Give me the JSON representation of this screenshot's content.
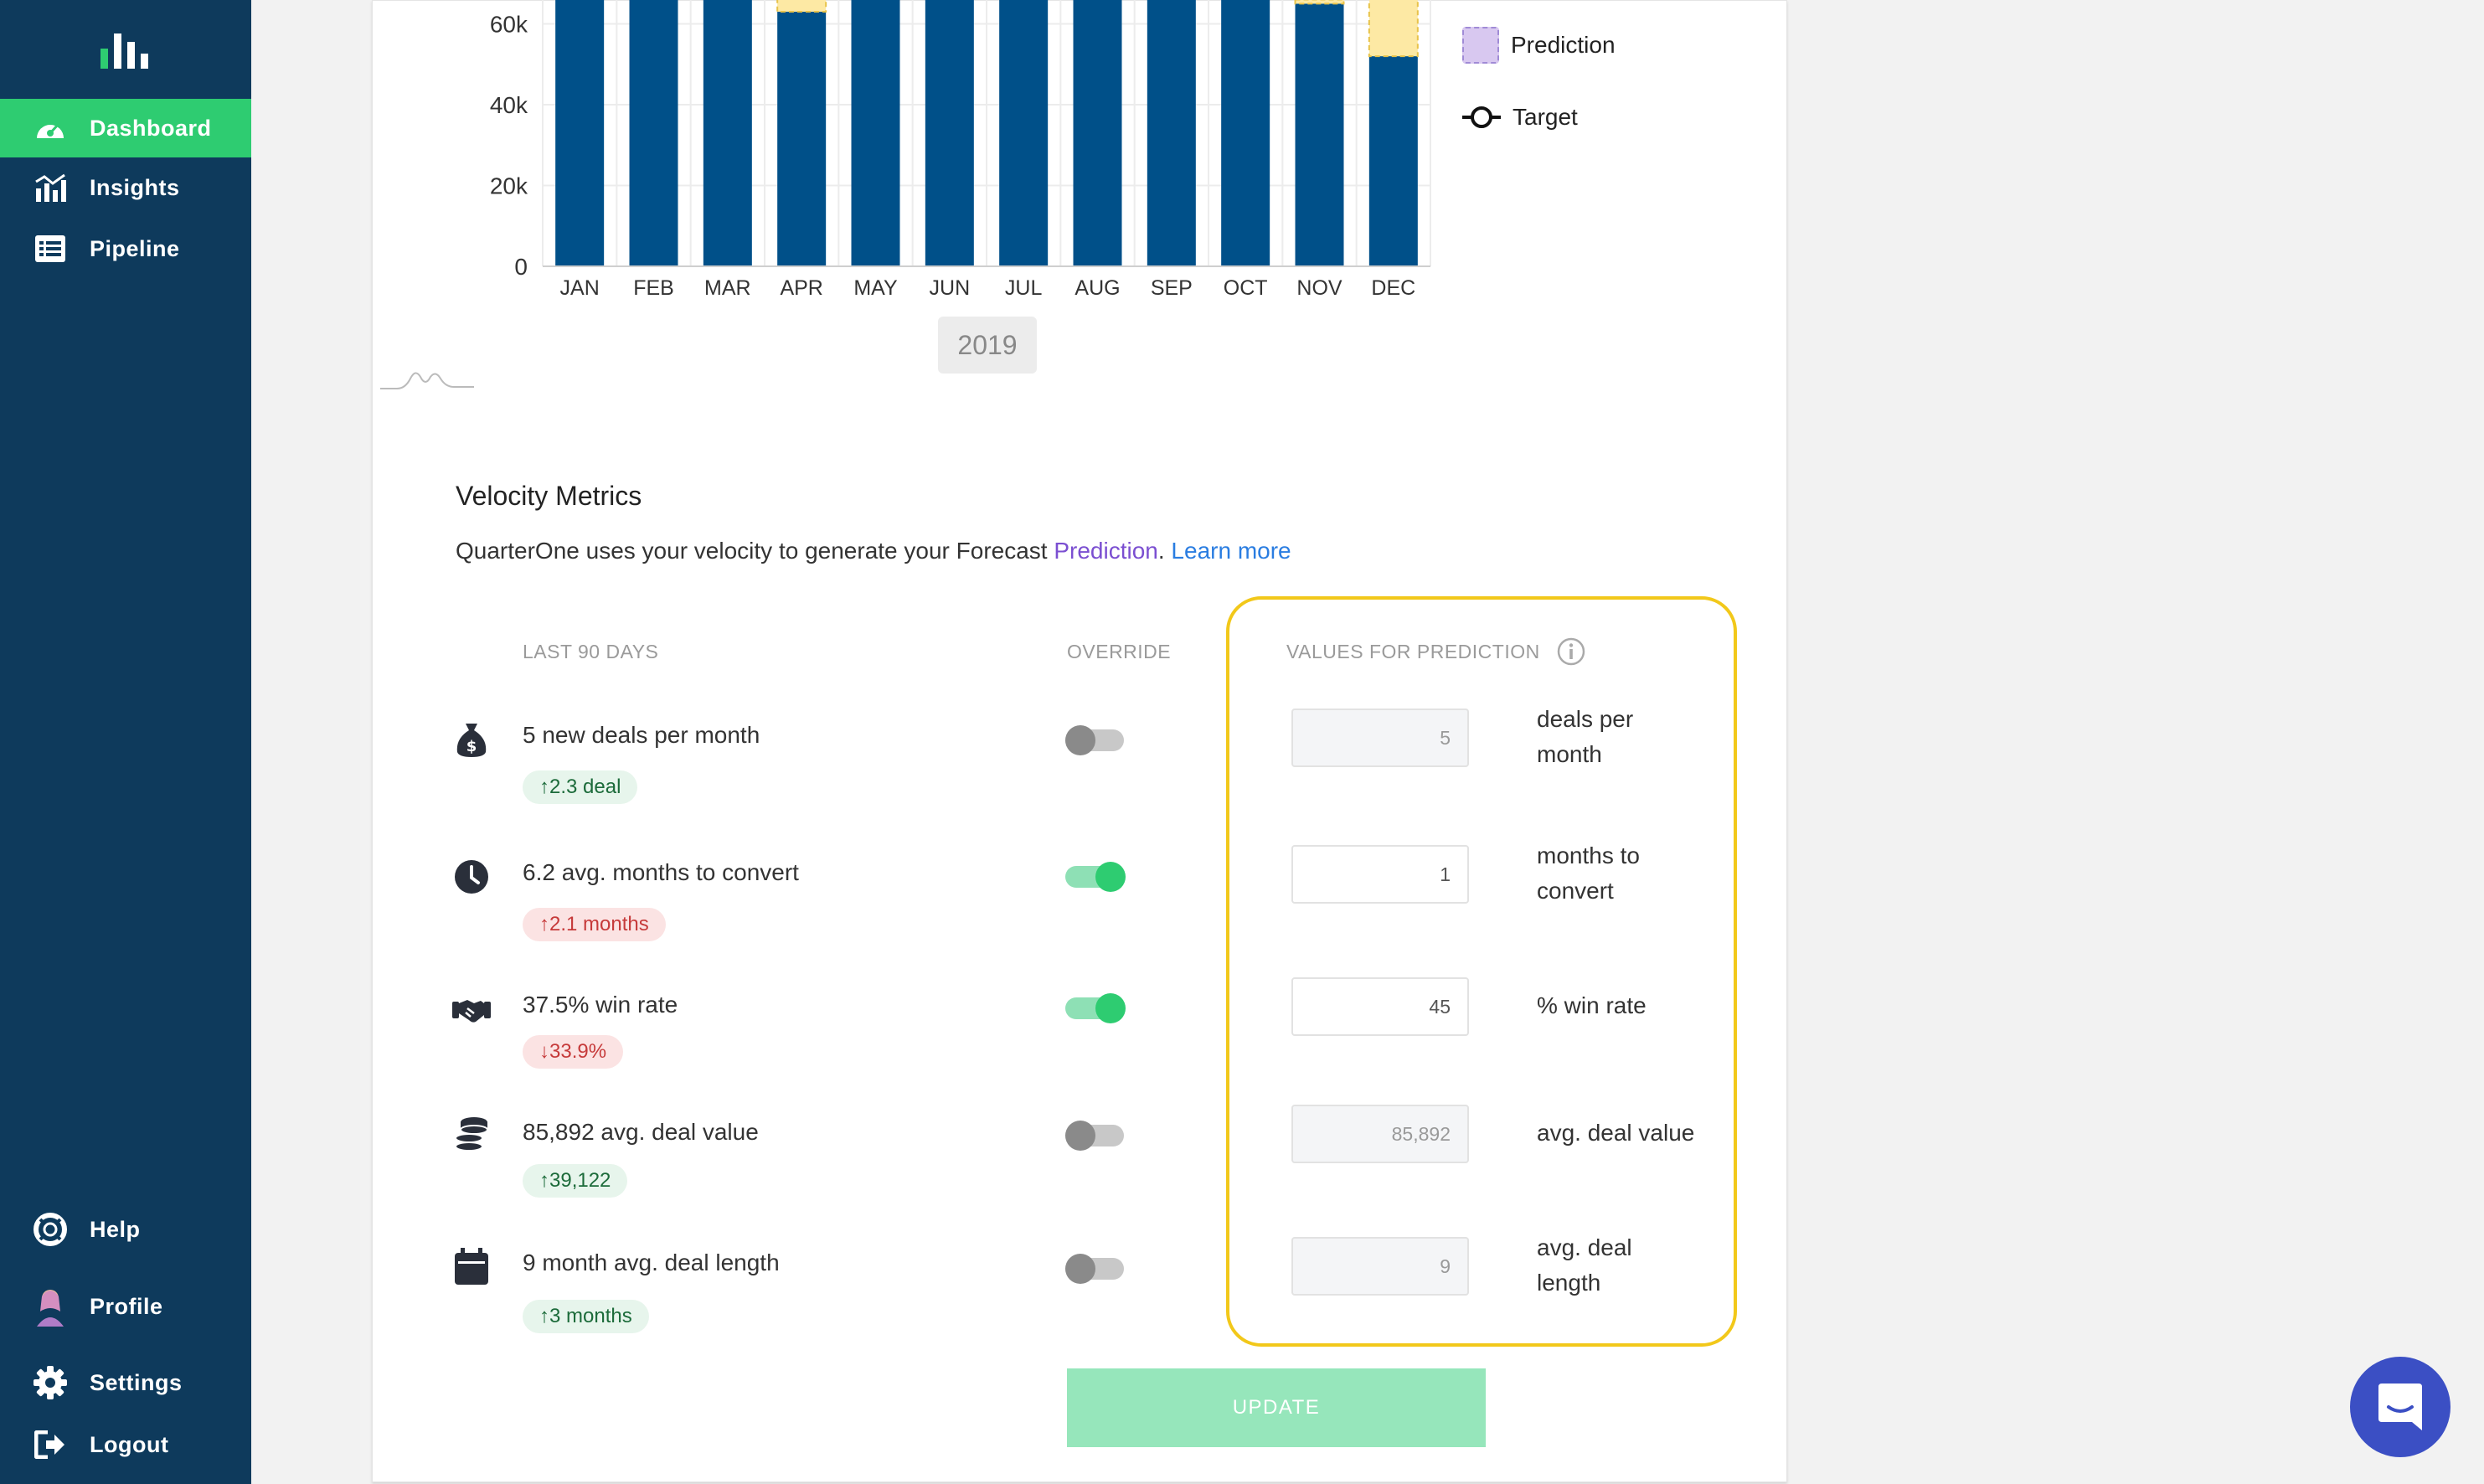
{
  "sidebar": {
    "nav": [
      {
        "label": "Dashboard",
        "icon": "dashboard-gauge-icon",
        "active": true
      },
      {
        "label": "Insights",
        "icon": "chart-insights-icon",
        "active": false
      },
      {
        "label": "Pipeline",
        "icon": "pipeline-list-icon",
        "active": false
      }
    ],
    "bottom": [
      {
        "label": "Help",
        "icon": "lifebuoy-icon"
      },
      {
        "label": "Profile",
        "icon": "avatar-icon"
      },
      {
        "label": "Settings",
        "icon": "gear-icon"
      },
      {
        "label": "Logout",
        "icon": "logout-icon"
      }
    ]
  },
  "colors": {
    "sidebar": "#0e3a5c",
    "accent": "#2ecc71",
    "bar": "#005089",
    "prediction": "#fde9a4",
    "highlight": "#f2c81a"
  },
  "chart_data": {
    "type": "bar",
    "categories": [
      "JAN",
      "FEB",
      "MAR",
      "APR",
      "MAY",
      "JUN",
      "JUL",
      "AUG",
      "SEP",
      "OCT",
      "NOV",
      "DEC"
    ],
    "series": [
      {
        "values": [
          70000,
          70000,
          70000,
          63000,
          70000,
          70000,
          70000,
          70000,
          70000,
          70000,
          65000,
          52000
        ]
      },
      {
        "name": "Prediction",
        "values": [
          0,
          0,
          0,
          7000,
          0,
          0,
          0,
          0,
          0,
          0,
          1000,
          18000
        ]
      }
    ],
    "y_ticks": [
      "0",
      "20k",
      "40k",
      "60k"
    ],
    "ylim": [
      0,
      70000
    ],
    "stacked": true,
    "year": "2019",
    "legend": [
      {
        "label": "Prediction"
      },
      {
        "label": "Target"
      }
    ],
    "legend_position": "right"
  },
  "velocity": {
    "title": "Velocity Metrics",
    "desc_prefix": "QuarterOne uses your velocity to generate your Forecast ",
    "desc_prediction": "Prediction",
    "desc_dot": ".",
    "desc_learn": "Learn more",
    "col_last90": "LAST 90 DAYS",
    "col_override": "OVERRIDE",
    "col_values": "VALUES FOR PREDICTION",
    "update_label": "UPDATE",
    "metrics": [
      {
        "text": "5 new deals per month",
        "badge": "2.3 deal",
        "badge_dir": "up",
        "override": false,
        "value": "5",
        "unit": "deals per month",
        "unit_l1": "deals per",
        "unit_l2": "month",
        "icon": "money-bag-icon"
      },
      {
        "text": "6.2 avg. months to convert",
        "badge": "2.1 months",
        "badge_dir": "down",
        "override": true,
        "value": "1",
        "unit": "months to convert",
        "unit_l1": "months to",
        "unit_l2": "convert",
        "icon": "clock-icon"
      },
      {
        "text": "37.5% win rate",
        "badge": "33.9%",
        "badge_dir": "down",
        "override": true,
        "value": "45",
        "unit": "% win rate",
        "unit_l1": "% win rate",
        "unit_l2": "",
        "icon": "handshake-icon"
      },
      {
        "text": "85,892 avg. deal value",
        "badge": "39,122",
        "badge_dir": "up",
        "override": false,
        "value": "85,892",
        "unit": "avg. deal value",
        "unit_l1": "avg. deal value",
        "unit_l2": "",
        "icon": "coins-icon"
      },
      {
        "text": "9 month avg. deal length",
        "badge": "3 months",
        "badge_dir": "up",
        "override": false,
        "value": "9",
        "unit": "avg. deal length",
        "unit_l1": "avg. deal",
        "unit_l2": "length",
        "icon": "calendar-icon"
      }
    ]
  }
}
